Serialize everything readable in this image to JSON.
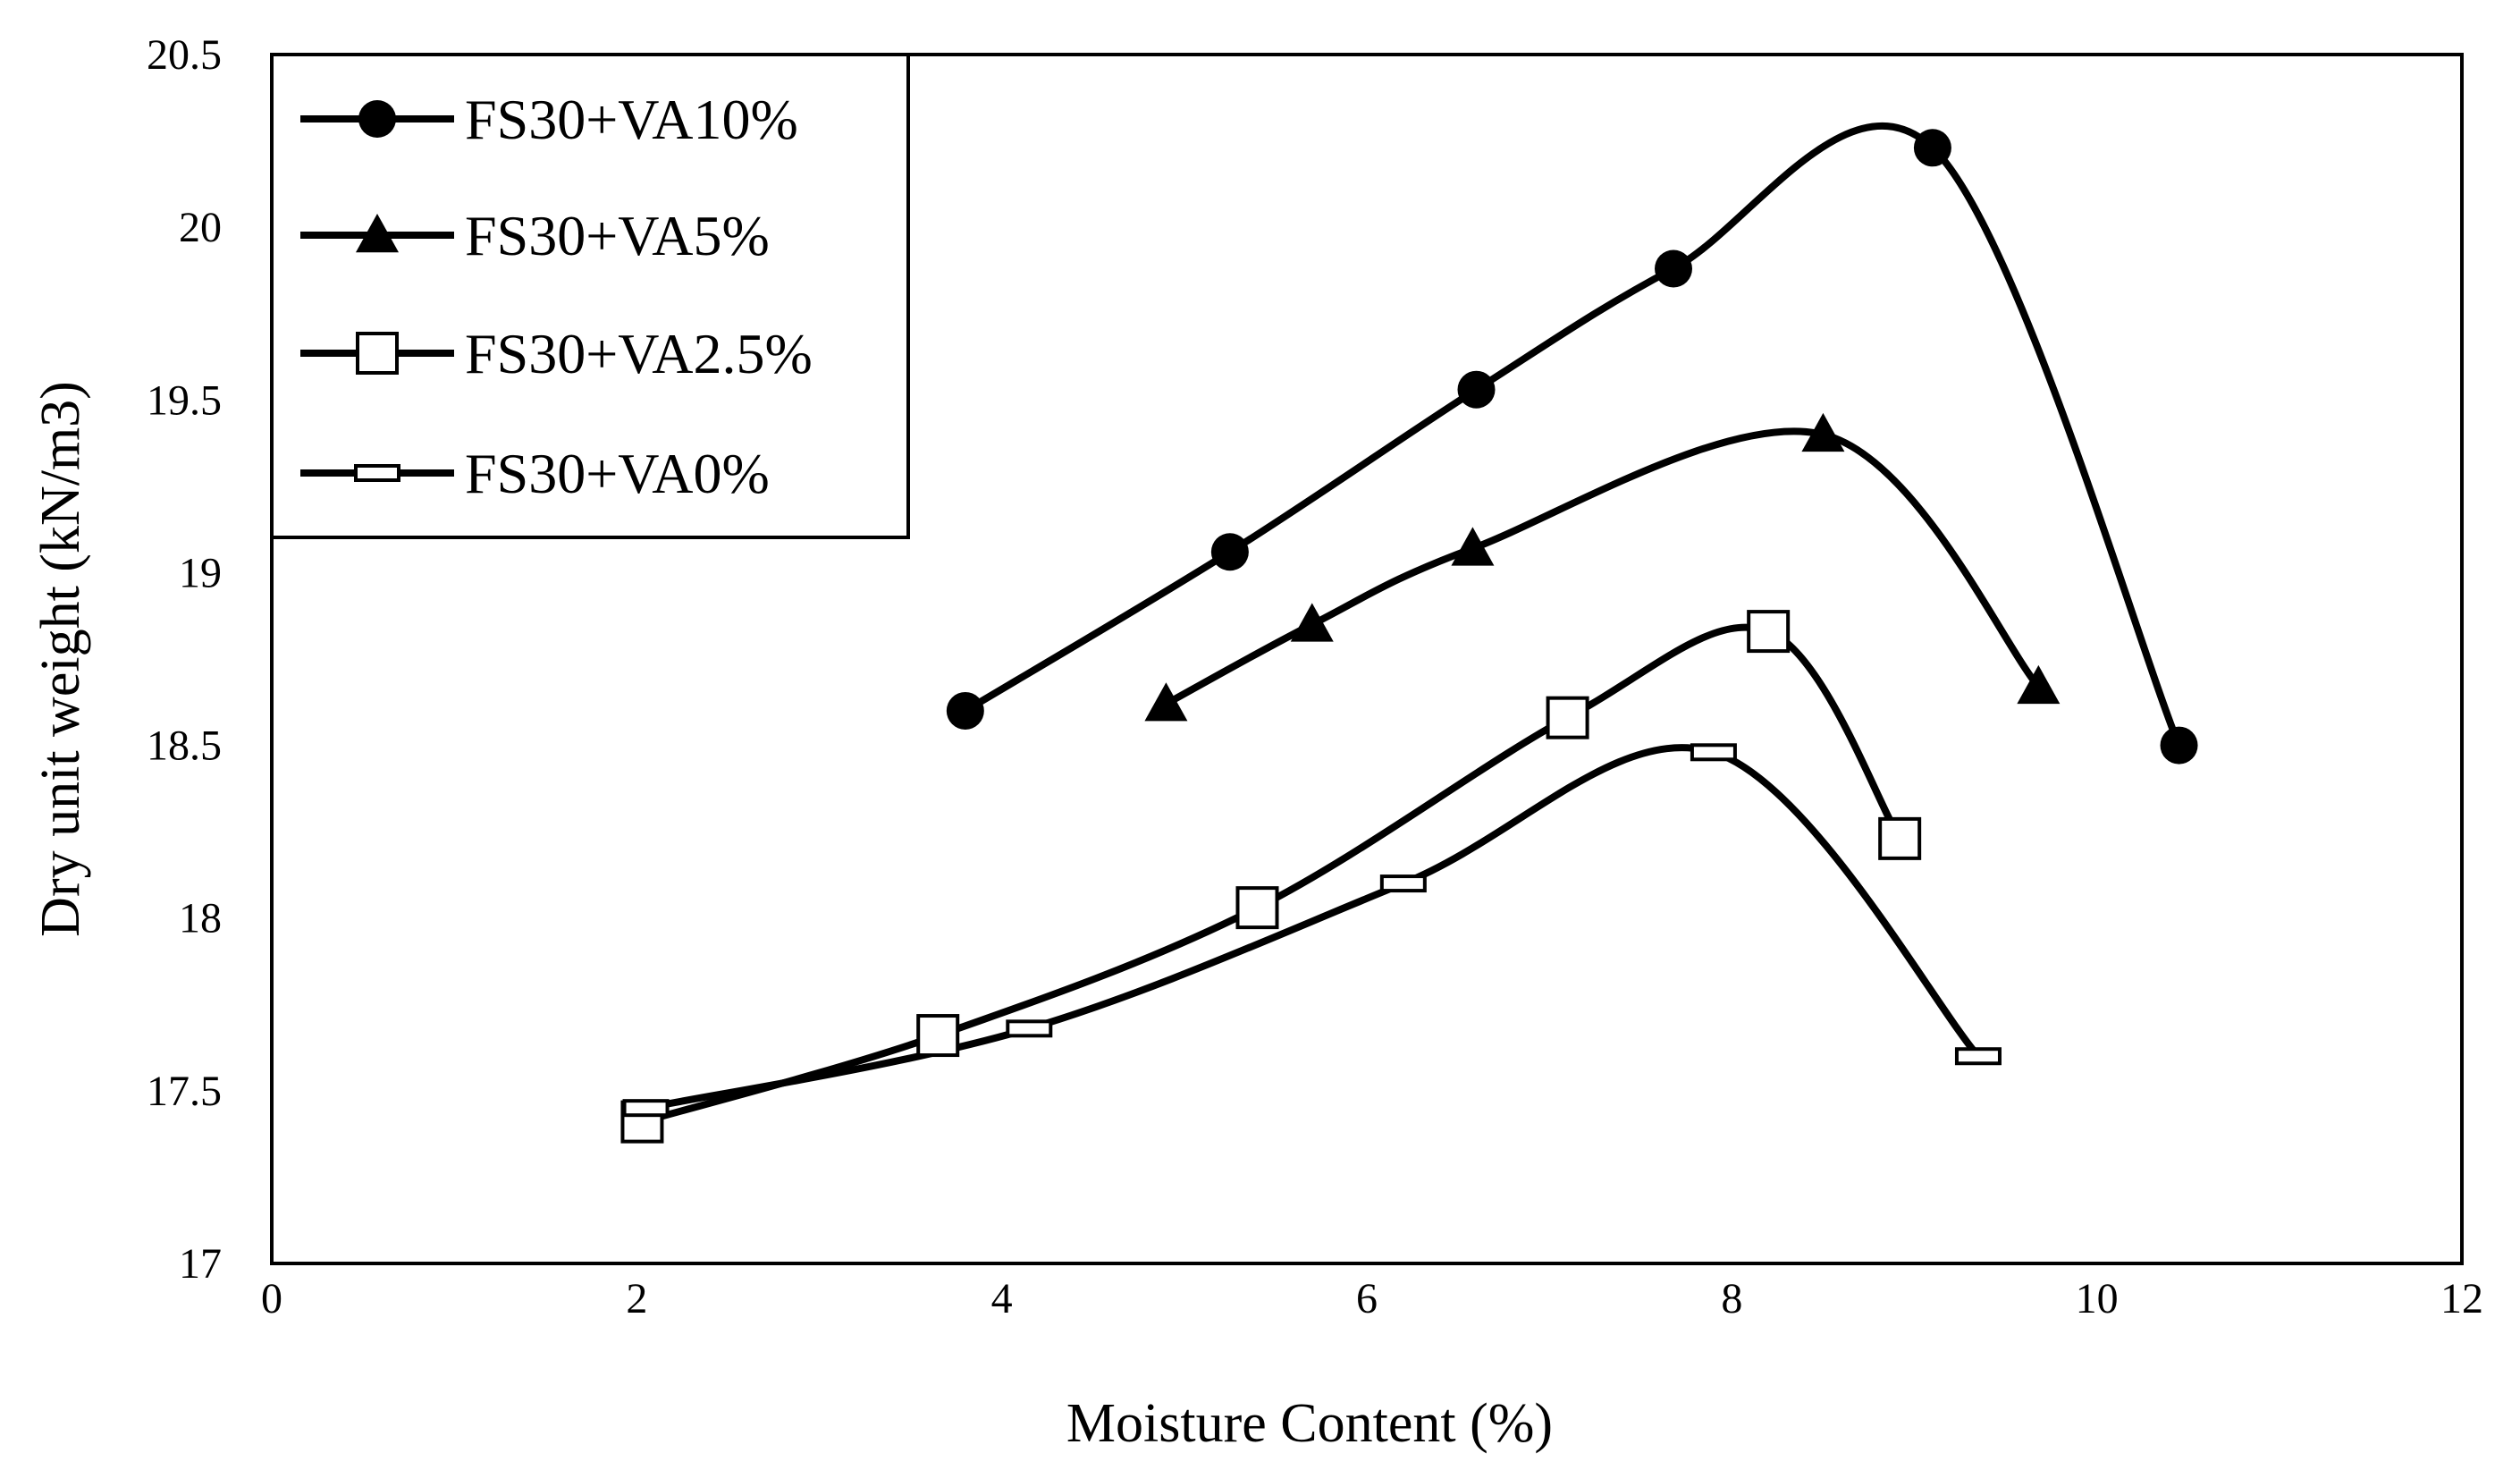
{
  "chart_data": {
    "type": "line",
    "title": "",
    "xlabel": "Moisture Content (%)",
    "ylabel": "Dry unit weight  (kN/m3)",
    "xlim": [
      0,
      12
    ],
    "ylim": [
      17,
      20.5
    ],
    "xticks": [
      0,
      2,
      4,
      6,
      8,
      10,
      12
    ],
    "yticks": [
      17,
      17.5,
      18,
      18.5,
      19,
      19.5,
      20,
      20.5
    ],
    "xtick_labels": [
      "0",
      "2",
      "4",
      "6",
      "8",
      "10",
      "12"
    ],
    "ytick_labels": [
      "17",
      "17.5",
      "18",
      "18.5",
      "19",
      "19.5",
      "20",
      "20.5"
    ],
    "grid": false,
    "legend_position": "top-left",
    "series": [
      {
        "name": "FS30+VA10%",
        "marker": "circle",
        "x": [
          3.8,
          5.25,
          6.6,
          7.68,
          9.1,
          10.45
        ],
        "y": [
          18.6,
          19.06,
          19.53,
          19.88,
          20.23,
          18.5
        ]
      },
      {
        "name": "FS30+VA5%",
        "marker": "triangle",
        "x": [
          4.9,
          5.7,
          6.58,
          8.5,
          9.68
        ],
        "y": [
          18.62,
          18.85,
          19.07,
          19.4,
          18.67
        ]
      },
      {
        "name": "FS30+VA2.5%",
        "marker": "square-open",
        "x": [
          2.03,
          3.65,
          5.4,
          7.1,
          8.2,
          8.92
        ],
        "y": [
          17.41,
          17.66,
          18.03,
          18.58,
          18.83,
          18.23
        ]
      },
      {
        "name": "FS30+VA0%",
        "marker": "dash",
        "x": [
          2.05,
          4.15,
          6.2,
          7.9,
          9.35
        ],
        "y": [
          17.45,
          17.68,
          18.1,
          18.48,
          17.6
        ]
      }
    ]
  }
}
